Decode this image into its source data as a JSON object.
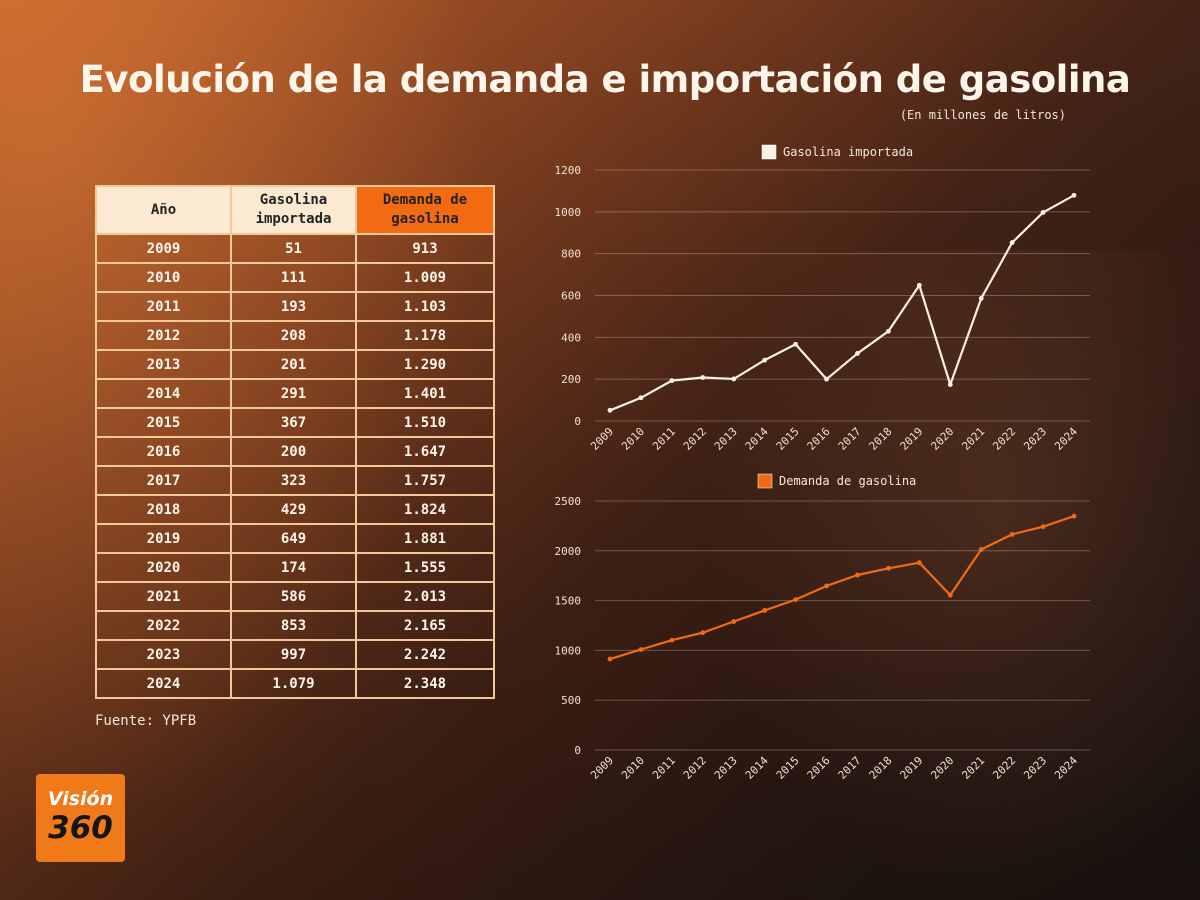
{
  "title": "Evolución de la demanda e importación de gasolina",
  "subtitle": "(En millones de litros)",
  "source": "Fuente: YPFB",
  "logo": {
    "line1": "Visión",
    "line2": "360"
  },
  "table": {
    "headers": [
      "Año",
      "Gasolina importada",
      "Demanda de gasolina"
    ],
    "rows": [
      [
        "2009",
        "51",
        "913"
      ],
      [
        "2010",
        "111",
        "1.009"
      ],
      [
        "2011",
        "193",
        "1.103"
      ],
      [
        "2012",
        "208",
        "1.178"
      ],
      [
        "2013",
        "201",
        "1.290"
      ],
      [
        "2014",
        "291",
        "1.401"
      ],
      [
        "2015",
        "367",
        "1.510"
      ],
      [
        "2016",
        "200",
        "1.647"
      ],
      [
        "2017",
        "323",
        "1.757"
      ],
      [
        "2018",
        "429",
        "1.824"
      ],
      [
        "2019",
        "649",
        "1.881"
      ],
      [
        "2020",
        "174",
        "1.555"
      ],
      [
        "2021",
        "586",
        "2.013"
      ],
      [
        "2022",
        "853",
        "2.165"
      ],
      [
        "2023",
        "997",
        "2.242"
      ],
      [
        "2024",
        "1.079",
        "2.348"
      ]
    ]
  },
  "colors": {
    "import_line": "#fbf1e4",
    "demand_line": "#f26a12",
    "header_highlight": "#f26a12"
  },
  "chart_data": [
    {
      "type": "line",
      "x": [
        "2009",
        "2010",
        "2011",
        "2012",
        "2013",
        "2014",
        "2015",
        "2016",
        "2017",
        "2018",
        "2019",
        "2020",
        "2021",
        "2022",
        "2023",
        "2024"
      ],
      "series": [
        {
          "name": "Gasolina importada",
          "values": [
            51,
            111,
            193,
            208,
            201,
            291,
            367,
            200,
            323,
            429,
            649,
            174,
            586,
            853,
            997,
            1079
          ]
        }
      ],
      "yticks": [
        0,
        200,
        400,
        600,
        800,
        1000,
        1200
      ],
      "ylim": [
        0,
        1200
      ],
      "legend": "top-left",
      "grid": true
    },
    {
      "type": "line",
      "x": [
        "2009",
        "2010",
        "2011",
        "2012",
        "2013",
        "2014",
        "2015",
        "2016",
        "2017",
        "2018",
        "2019",
        "2020",
        "2021",
        "2022",
        "2023",
        "2024"
      ],
      "series": [
        {
          "name": "Demanda de gasolina",
          "values": [
            913,
            1009,
            1103,
            1178,
            1290,
            1401,
            1510,
            1647,
            1757,
            1824,
            1881,
            1555,
            2013,
            2165,
            2242,
            2348
          ]
        }
      ],
      "yticks": [
        0,
        500,
        1000,
        1500,
        2000,
        2500
      ],
      "ylim": [
        0,
        2500
      ],
      "legend": "top-left",
      "grid": true
    }
  ]
}
